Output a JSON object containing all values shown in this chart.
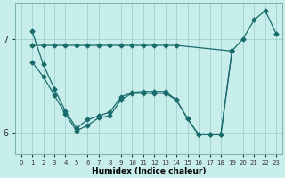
{
  "xlabel": "Humidex (Indice chaleur)",
  "background_color": "#c8eeec",
  "grid_color": "#a0d0cc",
  "line_color": "#1a6b6b",
  "xlim": [
    -0.5,
    23.5
  ],
  "ylim": [
    5.78,
    7.38
  ],
  "yticks": [
    6,
    7
  ],
  "xticks": [
    0,
    1,
    2,
    3,
    4,
    5,
    6,
    7,
    8,
    9,
    10,
    11,
    12,
    13,
    14,
    15,
    16,
    17,
    18,
    19,
    20,
    21,
    22,
    23
  ],
  "line1_x": [
    1,
    2,
    3,
    4,
    5,
    6,
    7,
    8,
    9,
    10,
    11,
    12,
    13,
    14,
    19,
    20,
    21,
    22,
    23
  ],
  "line1_y": [
    6.93,
    6.93,
    6.93,
    6.93,
    6.93,
    6.93,
    6.93,
    6.93,
    6.93,
    6.93,
    6.93,
    6.93,
    6.93,
    6.93,
    6.87,
    7.0,
    7.2,
    7.3,
    7.05
  ],
  "line2_x": [
    1,
    2,
    3,
    4,
    5,
    6,
    7,
    8,
    9,
    10,
    11,
    12,
    13,
    14,
    15,
    16,
    17,
    18,
    19
  ],
  "line2_y": [
    6.75,
    6.6,
    6.4,
    6.2,
    6.02,
    6.08,
    6.16,
    6.18,
    6.35,
    6.42,
    6.42,
    6.42,
    6.42,
    6.35,
    6.15,
    5.98,
    5.98,
    5.98,
    6.87
  ],
  "line3_x": [
    1,
    2,
    3,
    4,
    5,
    6,
    7,
    8,
    9,
    10,
    11,
    12,
    13,
    14,
    15,
    16,
    17,
    18,
    19
  ],
  "line3_y": [
    7.08,
    6.73,
    6.47,
    6.23,
    6.05,
    6.14,
    6.18,
    6.22,
    6.38,
    6.43,
    6.44,
    6.44,
    6.44,
    6.35,
    6.15,
    5.98,
    5.98,
    5.98,
    6.87
  ]
}
